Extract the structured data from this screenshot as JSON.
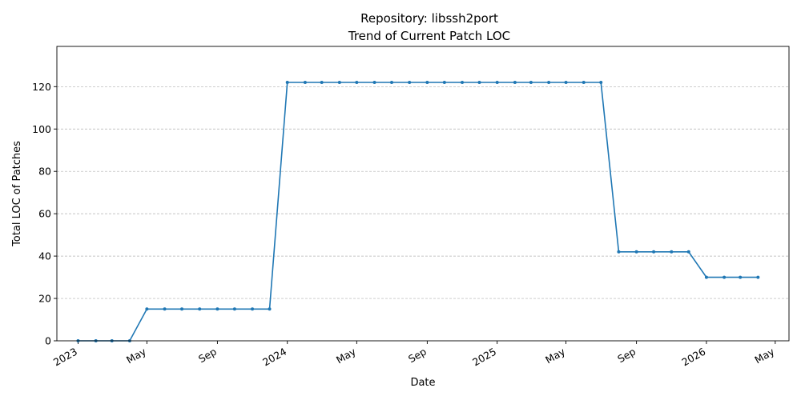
{
  "chart_data": {
    "type": "line",
    "title_line1": "Repository: libssh2port",
    "title_line2": "Trend of Current Patch LOC",
    "xlabel": "Date",
    "ylabel": "Total LOC of Patches",
    "ylim": [
      0,
      139
    ],
    "xlim": [
      "2022-11-25",
      "2026-05-25"
    ],
    "yticks": [
      0,
      20,
      40,
      60,
      80,
      100,
      120
    ],
    "xticks": [
      {
        "date": "2023-01-01",
        "label": "2023"
      },
      {
        "date": "2023-05-01",
        "label": "May"
      },
      {
        "date": "2023-09-01",
        "label": "Sep"
      },
      {
        "date": "2024-01-01",
        "label": "2024"
      },
      {
        "date": "2024-05-01",
        "label": "May"
      },
      {
        "date": "2024-09-01",
        "label": "Sep"
      },
      {
        "date": "2025-01-01",
        "label": "2025"
      },
      {
        "date": "2025-05-01",
        "label": "May"
      },
      {
        "date": "2025-09-01",
        "label": "Sep"
      },
      {
        "date": "2026-01-01",
        "label": "2026"
      },
      {
        "date": "2026-05-01",
        "label": "May"
      }
    ],
    "grid": "y-dashed",
    "color": "#1f77b4",
    "series": [
      {
        "x": [
          "2023-01-01",
          "2023-02-01",
          "2023-03-01",
          "2023-04-01",
          "2023-05-01",
          "2023-06-01",
          "2023-07-01",
          "2023-08-01",
          "2023-09-01",
          "2023-10-01",
          "2023-11-01",
          "2023-12-01",
          "2024-01-01",
          "2024-02-01",
          "2024-03-01",
          "2024-04-01",
          "2024-05-01",
          "2024-06-01",
          "2024-07-01",
          "2024-08-01",
          "2024-09-01",
          "2024-10-01",
          "2024-11-01",
          "2024-12-01",
          "2025-01-01",
          "2025-02-01",
          "2025-03-01",
          "2025-04-01",
          "2025-05-01",
          "2025-06-01",
          "2025-07-01",
          "2025-08-01",
          "2025-09-01",
          "2025-10-01",
          "2025-11-01",
          "2025-12-01",
          "2026-01-01",
          "2026-02-01",
          "2026-03-01",
          "2026-04-01"
        ],
        "values": [
          0,
          0,
          0,
          0,
          15,
          15,
          15,
          15,
          15,
          15,
          15,
          15,
          122,
          122,
          122,
          122,
          122,
          122,
          122,
          122,
          122,
          122,
          122,
          122,
          122,
          122,
          122,
          122,
          122,
          122,
          122,
          42,
          42,
          42,
          42,
          42,
          30,
          30,
          30,
          30
        ]
      }
    ]
  }
}
